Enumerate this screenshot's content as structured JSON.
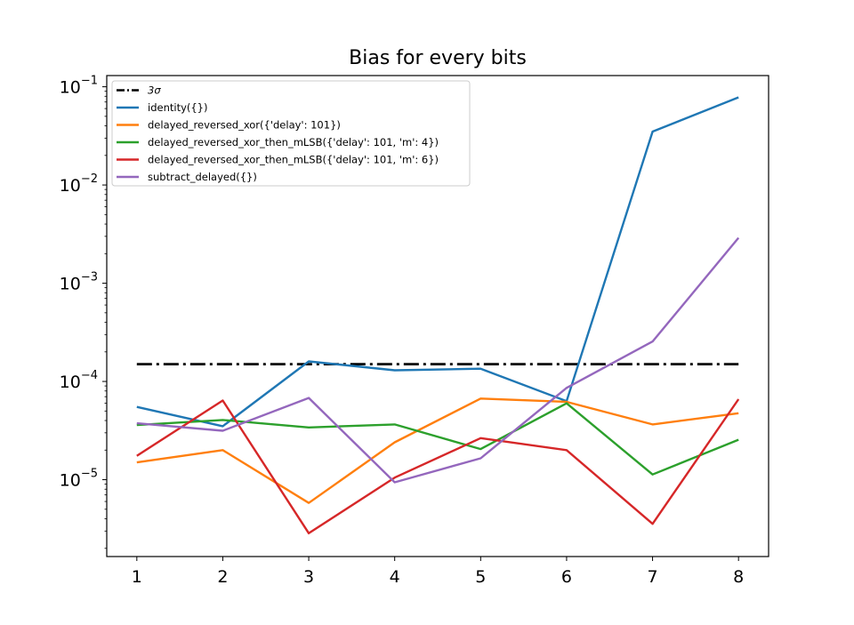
{
  "chart_data": {
    "type": "line",
    "title": "Bias for every bits",
    "xlabel": "",
    "ylabel": "",
    "yscale": "log",
    "x": [
      1,
      2,
      3,
      4,
      5,
      6,
      7,
      8
    ],
    "xlim": [
      0.65,
      8.35
    ],
    "ylim": [
      1.65e-06,
      0.13
    ],
    "grid": false,
    "legend_position": "top-left",
    "x_tick_labels": [
      "1",
      "2",
      "3",
      "4",
      "5",
      "6",
      "7",
      "8"
    ],
    "y_ticks": [
      {
        "value": 1e-05,
        "base": "10",
        "exp": "−5"
      },
      {
        "value": 0.0001,
        "base": "10",
        "exp": "−4"
      },
      {
        "value": 0.001,
        "base": "10",
        "exp": "−3"
      },
      {
        "value": 0.01,
        "base": "10",
        "exp": "−2"
      },
      {
        "value": 0.1,
        "base": "10",
        "exp": "−1"
      }
    ],
    "threshold": {
      "name": "3σ",
      "value": 0.00015,
      "color": "#000000",
      "style": "dash-dot"
    },
    "series": [
      {
        "name": "identity({})",
        "color": "#1f77b4",
        "values": [
          5.5e-05,
          3.5e-05,
          0.00016,
          0.00013,
          0.000135,
          6.3e-05,
          0.035,
          0.078
        ]
      },
      {
        "name": "delayed_reversed_xor({'delay': 101})",
        "color": "#ff7f0e",
        "values": [
          1.5e-05,
          2e-05,
          5.8e-06,
          2.4e-05,
          6.7e-05,
          6.2e-05,
          3.65e-05,
          4.75e-05
        ]
      },
      {
        "name": "delayed_reversed_xor_then_mLSB({'delay': 101, 'm': 4})",
        "color": "#2ca02c",
        "values": [
          3.6e-05,
          4.05e-05,
          3.4e-05,
          3.65e-05,
          2.05e-05,
          6e-05,
          1.13e-05,
          2.55e-05
        ]
      },
      {
        "name": "delayed_reversed_xor_then_mLSB({'delay': 101, 'm': 6})",
        "color": "#d62728",
        "values": [
          1.75e-05,
          6.4e-05,
          2.85e-06,
          1.05e-05,
          2.65e-05,
          2e-05,
          3.55e-06,
          6.6e-05
        ]
      },
      {
        "name": "subtract_delayed({})",
        "color": "#9467bd",
        "values": [
          3.75e-05,
          3.15e-05,
          6.8e-05,
          9.4e-06,
          1.65e-05,
          8.6e-05,
          0.000255,
          0.0029
        ]
      }
    ]
  }
}
